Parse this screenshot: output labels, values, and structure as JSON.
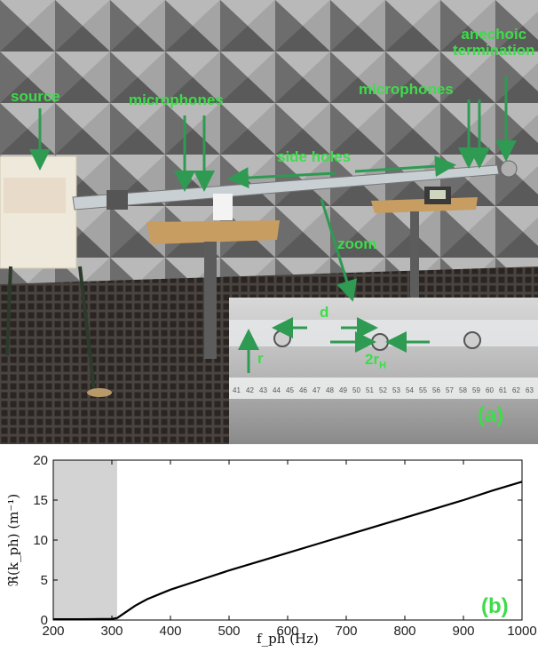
{
  "photo": {
    "labels": {
      "source": "source",
      "microphones_left": "microphones",
      "microphones_right": "microphones",
      "anechoic_line1": "anechoic",
      "anechoic_line2": "termination",
      "side_holes": "side holes",
      "zoom": "zoom",
      "d": "d",
      "r": "r",
      "two_r_h_main": "2r",
      "two_r_h_sub": "H",
      "panel": "(a)"
    },
    "ruler_numbers": [
      "41",
      "42",
      "43",
      "44",
      "45",
      "46",
      "47",
      "48",
      "49",
      "50",
      "51",
      "52",
      "53",
      "54",
      "55",
      "56",
      "57",
      "58",
      "59",
      "60",
      "61",
      "62",
      "63"
    ],
    "colors": {
      "annotation": "#3ddc4a",
      "arrow": "#2e9a52"
    }
  },
  "chart_data": {
    "type": "line",
    "panel_label": "(b)",
    "xlabel": "f_ph (Hz)",
    "ylabel": "ℜ(k_ph) (m⁻¹)",
    "xlim": [
      200,
      1000
    ],
    "ylim": [
      0,
      20
    ],
    "xticks": [
      200,
      300,
      400,
      500,
      600,
      700,
      800,
      900,
      1000
    ],
    "yticks": [
      0,
      5,
      10,
      15,
      20
    ],
    "shaded_band": {
      "x": [
        200,
        309
      ],
      "color": "#d3d3d3"
    },
    "grid": false,
    "series": [
      {
        "x": [
          200,
          250,
          300,
          309,
          320,
          340,
          360,
          380,
          400,
          450,
          500,
          550,
          600,
          650,
          700,
          750,
          800,
          850,
          900,
          950,
          1000
        ],
        "y": [
          0.1,
          0.1,
          0.15,
          0.25,
          0.8,
          1.8,
          2.6,
          3.2,
          3.8,
          5.0,
          6.2,
          7.3,
          8.4,
          9.5,
          10.6,
          11.7,
          12.8,
          13.9,
          15.0,
          16.2,
          17.3
        ]
      }
    ]
  }
}
